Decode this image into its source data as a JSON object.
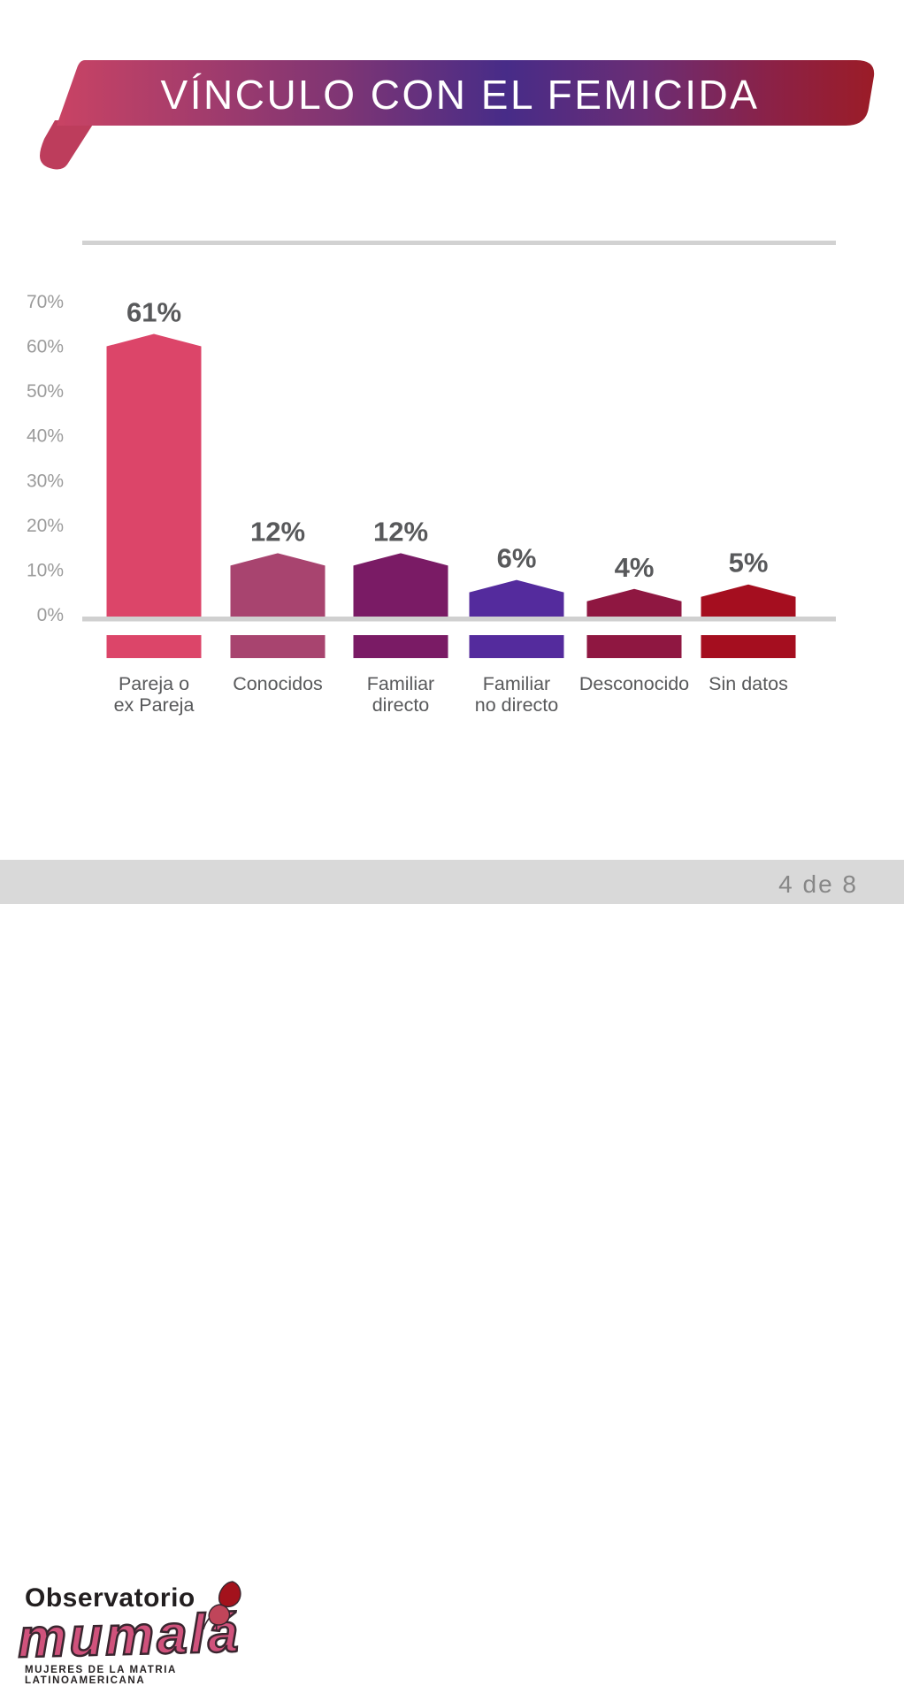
{
  "banner": {
    "title": "VÍNCULO CON EL FEMICIDA",
    "gradient": [
      "#c94364",
      "#7e3574",
      "#472c88",
      "#6b2d74",
      "#8c2145",
      "#9b1c27"
    ],
    "fold_color": "#bd3d5c"
  },
  "chart_data": {
    "type": "bar",
    "categories": [
      "Pareja o\nex Pareja",
      "Conocidos",
      "Familiar\ndirecto",
      "Familiar\nno directo",
      "Desconocido",
      "Sin datos"
    ],
    "values": [
      61,
      12,
      12,
      6,
      4,
      5
    ],
    "value_labels": [
      "61%",
      "12%",
      "12%",
      "6%",
      "4%",
      "5%"
    ],
    "bar_colors": [
      "#dc4569",
      "#a8446f",
      "#7a1b65",
      "#542b9d",
      "#8f1741",
      "#a50e1f"
    ],
    "title": "VÍNCULO CON EL FEMICIDA",
    "xlabel": "",
    "ylabel": "",
    "ylim": [
      0,
      70
    ],
    "yticks": [
      "0%",
      "10%",
      "20%",
      "30%",
      "40%",
      "50%",
      "60%",
      "70%"
    ],
    "grid": false,
    "legend": false,
    "baseline_color": "#d0d0d0",
    "tick_color": "#9b9b9b",
    "label_color": "#58595b"
  },
  "footer": {
    "logo_top": "Observatorio",
    "logo_name": "mumalá",
    "logo_caption": "MUJERES DE LA MATRIA LATINOAMERICANA",
    "page_indicator": "4 de 8",
    "band_color": "#d9d9d9"
  }
}
